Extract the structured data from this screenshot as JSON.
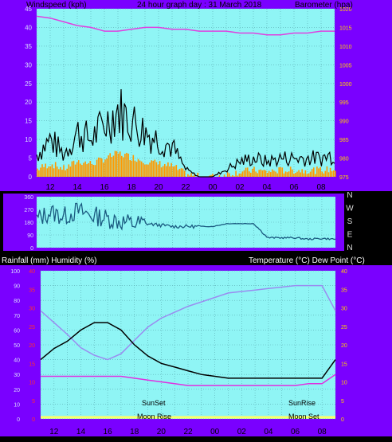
{
  "colors": {
    "frame": "#7a00ff",
    "plot_bg": "#8ff5f5",
    "grid": "#5aaab0",
    "wind_gust": "#000000",
    "wind_avg": "#ff9900",
    "wind_light": "#4dff88",
    "baro": "#e040e0",
    "dir": "#1a5a80",
    "temp": "#000000",
    "humidity": "#9a8cf0",
    "dewpoint": "#e030e0",
    "rain": "#ffff66",
    "left_axis_text": "#d8d8ff",
    "right_axis_text": "#ffd000",
    "rain_axis_text": "#ff3030"
  },
  "top_chart": {
    "left_title": "Windspeed (kph)",
    "center_title": "24 hour graph day : 31 March 2018",
    "right_title": "Barometer (hpa)",
    "wind_ticks": [
      "0",
      "5",
      "10",
      "15",
      "20",
      "25",
      "30",
      "35",
      "40",
      "45"
    ],
    "baro_ticks": [
      "975",
      "980",
      "985",
      "990",
      "995",
      "1000",
      "1005",
      "1010",
      "1015",
      "1020"
    ],
    "x_ticks": [
      "12",
      "14",
      "16",
      "18",
      "20",
      "22",
      "00",
      "02",
      "04",
      "06",
      "08"
    ]
  },
  "dir_chart": {
    "left_ticks": [
      "0",
      "90",
      "180",
      "270",
      "360"
    ],
    "compass": [
      "N",
      "W",
      "S",
      "E",
      "N"
    ]
  },
  "bottom_chart": {
    "left_title": "Rainfall (mm)  Humidity (%)",
    "right_title": "Temperature (°C) Dew Point (°C)",
    "humidity_ticks": [
      "0",
      "10",
      "20",
      "30",
      "40",
      "50",
      "60",
      "70",
      "80",
      "90",
      "100"
    ],
    "rain_ticks": [
      "0",
      "5",
      "10",
      "15",
      "20",
      "25",
      "30",
      "35",
      "40"
    ],
    "temp_ticks": [
      "0",
      "5",
      "10",
      "15",
      "20",
      "25",
      "30",
      "35",
      "40"
    ],
    "x_ticks": [
      "12",
      "14",
      "16",
      "18",
      "20",
      "22",
      "00",
      "02",
      "04",
      "06",
      "08"
    ],
    "annotations": {
      "sunset": "SunSet",
      "moonrise": "Moon Rise",
      "sunrise": "SunRise",
      "moonset": "Moon Set"
    }
  },
  "chart_data": [
    {
      "type": "line",
      "title": "24 hour graph day : 31 March 2018",
      "x": [
        "11",
        "12",
        "13",
        "14",
        "15",
        "16",
        "17",
        "18",
        "19",
        "20",
        "21",
        "22",
        "23",
        "00",
        "01",
        "02",
        "03",
        "04",
        "05",
        "06",
        "07",
        "08",
        "09"
      ],
      "series": [
        {
          "name": "Windspeed (kph)",
          "axis": "left",
          "values": [
            6,
            10,
            6,
            12,
            10,
            14,
            18,
            15,
            12,
            10,
            8,
            2,
            0,
            0,
            2,
            4,
            5,
            4,
            5,
            5,
            5,
            5,
            6
          ]
        },
        {
          "name": "Barometer (hpa)",
          "axis": "right",
          "values": [
            1018,
            1017.5,
            1016.5,
            1015.5,
            1015,
            1014,
            1014,
            1014.5,
            1015,
            1015,
            1014.5,
            1014.5,
            1014,
            1014,
            1014,
            1013.5,
            1013.5,
            1013,
            1013,
            1013.5,
            1013.5,
            1014,
            1014
          ]
        }
      ],
      "ylim_left": [
        0,
        45
      ],
      "ylim_right": [
        975,
        1020
      ],
      "grid": true
    },
    {
      "type": "line",
      "x": [
        "11",
        "12",
        "13",
        "14",
        "15",
        "16",
        "17",
        "18",
        "19",
        "20",
        "21",
        "22",
        "23",
        "00",
        "01",
        "02",
        "03",
        "04",
        "05",
        "06",
        "07",
        "08",
        "09"
      ],
      "series": [
        {
          "values": [
            200,
            250,
            220,
            260,
            230,
            210,
            190,
            170,
            170,
            160,
            150,
            150,
            150,
            150,
            170,
            170,
            170,
            70,
            70,
            70,
            60,
            65,
            60
          ]
        }
      ],
      "ylim": [
        0,
        360
      ],
      "grid": true
    },
    {
      "type": "line",
      "x": [
        "11",
        "12",
        "13",
        "14",
        "15",
        "16",
        "17",
        "18",
        "19",
        "20",
        "21",
        "22",
        "23",
        "00",
        "01",
        "02",
        "03",
        "04",
        "05",
        "06",
        "07",
        "08",
        "09"
      ],
      "series": [
        {
          "name": "Humidity (%)",
          "axis": "left",
          "values": [
            73,
            65,
            57,
            48,
            43,
            40,
            44,
            53,
            62,
            68,
            72,
            76,
            79,
            82,
            85,
            86,
            87,
            88,
            89,
            90,
            90,
            90,
            73
          ]
        },
        {
          "name": "Temperature (°C)",
          "axis": "right",
          "values": [
            16,
            19,
            21,
            24,
            26,
            26,
            24,
            20,
            17,
            15,
            14,
            13,
            12,
            11.5,
            11,
            11,
            11,
            11,
            11,
            11,
            11,
            11,
            16
          ]
        },
        {
          "name": "Dew Point (°C)",
          "axis": "right",
          "values": [
            11.5,
            11.5,
            11.5,
            11.5,
            11.5,
            11.5,
            11.5,
            11,
            10.5,
            10,
            9.5,
            9,
            9,
            9,
            9,
            9,
            9,
            9,
            9,
            9,
            9.5,
            9.5,
            12
          ]
        },
        {
          "name": "Rainfall (mm)",
          "axis": "rain",
          "values": [
            0,
            0,
            0,
            0,
            0,
            0,
            0,
            0,
            0,
            0,
            0,
            0,
            0,
            0,
            0,
            0,
            0,
            0,
            0,
            0,
            0,
            0,
            0
          ]
        }
      ],
      "ylim_left": [
        0,
        100
      ],
      "ylim_right": [
        0,
        40
      ],
      "ylim_rain": [
        0,
        40
      ],
      "grid": true
    }
  ]
}
